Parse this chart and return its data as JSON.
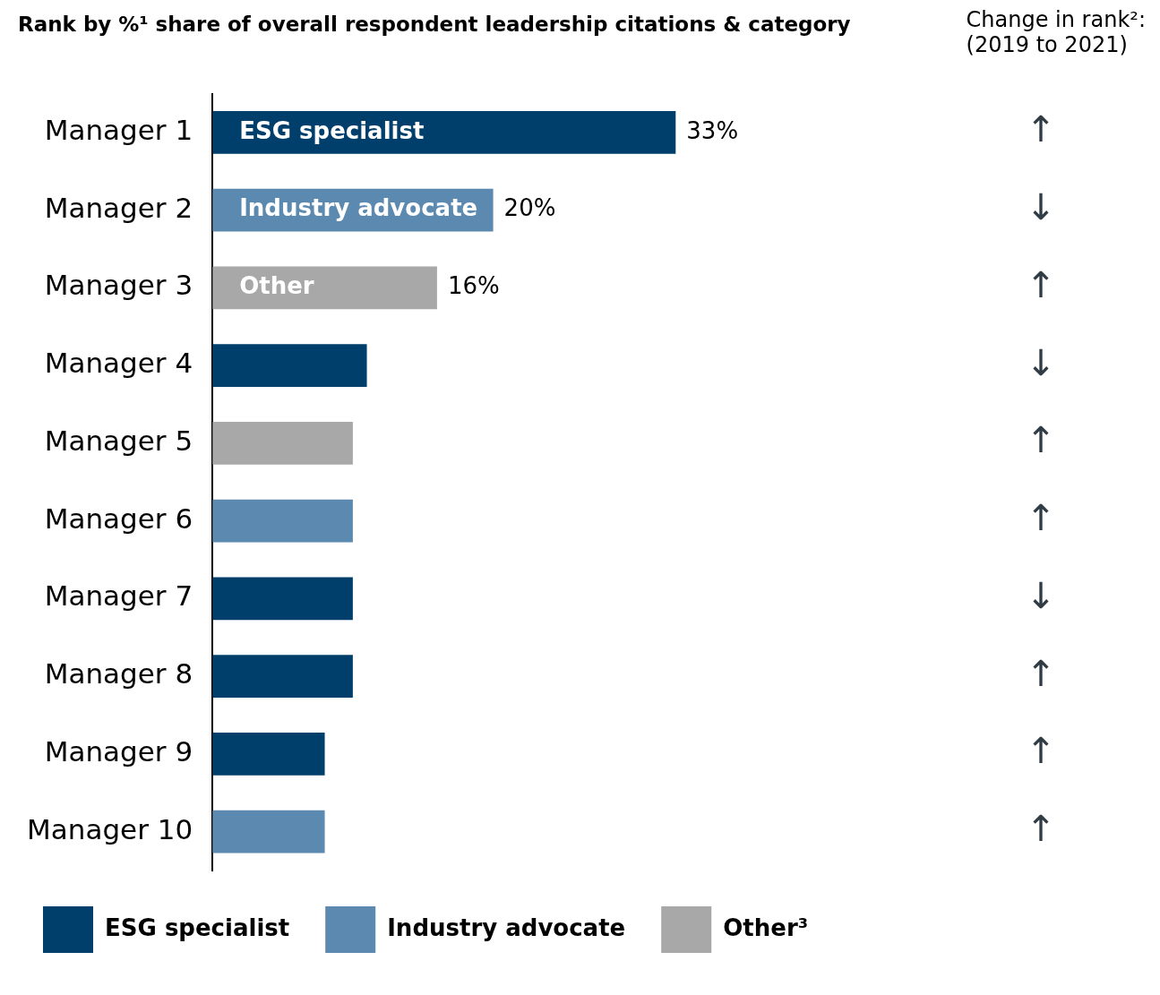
{
  "chart_data": {
    "type": "bar",
    "orientation": "horizontal",
    "stacked": true,
    "title": "Rank by %¹ share of overall respondent leadership citations & category",
    "subtitle": "Change in rank²:\n(2019 to 2021)",
    "categories": [
      "Manager 1",
      "Manager 2",
      "Manager 3",
      "Manager 4",
      "Manager 5",
      "Manager 6",
      "Manager 7",
      "Manager 8",
      "Manager 9",
      "Manager 10"
    ],
    "series": [
      {
        "name": "ESG specialist",
        "color": "#003f6b",
        "values": [
          33,
          null,
          null,
          11,
          null,
          null,
          10,
          10,
          8,
          null
        ],
        "value_labels": [
          "33%",
          null,
          null,
          null,
          null,
          null,
          null,
          null,
          null,
          null
        ]
      },
      {
        "name": "Industry advocate",
        "color": "#5b89b0",
        "values": [
          null,
          20,
          null,
          null,
          null,
          10,
          null,
          null,
          null,
          8
        ],
        "value_labels": [
          null,
          "20%",
          null,
          null,
          null,
          null,
          null,
          null,
          null,
          null
        ]
      },
      {
        "name": "Other³",
        "color": "#a8a8a8",
        "values": [
          null,
          null,
          16,
          null,
          10,
          null,
          null,
          null,
          null,
          null
        ],
        "value_labels": [
          null,
          null,
          "16%",
          null,
          null,
          null,
          null,
          null,
          null,
          null
        ]
      }
    ],
    "annotations": [
      "ESG specialist",
      "Industry advocate",
      "Other",
      "↑",
      "↓",
      "↑",
      "↓",
      "↑",
      "↑",
      "↓",
      "↑",
      "↑",
      "↑"
    ],
    "legend": "bottom",
    "grid": false
  }
}
